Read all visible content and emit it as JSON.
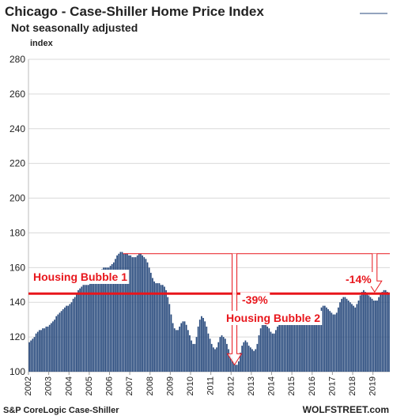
{
  "chart_data": {
    "type": "bar",
    "title": "Chicago - Case-Shiller Home Price Index",
    "subtitle": "Not seasonally adjusted",
    "y_label": "index",
    "source": "S&P CoreLogic Case-Shiller",
    "credit": "WOLFSTREET.com",
    "color": "#27497c",
    "grid": true,
    "ylim": [
      100,
      280
    ],
    "yticks": [
      100,
      120,
      140,
      160,
      180,
      200,
      220,
      240,
      260,
      280
    ],
    "reference_line": 145,
    "peak_line": 168,
    "annotations": [
      "Housing Bubble 1",
      "Housing Bubble 2",
      "-39%",
      "-14%"
    ],
    "categories": [
      "2002",
      null,
      null,
      null,
      null,
      null,
      null,
      null,
      null,
      null,
      null,
      null,
      "2003",
      null,
      null,
      null,
      null,
      null,
      null,
      null,
      null,
      null,
      null,
      null,
      "2004",
      null,
      null,
      null,
      null,
      null,
      null,
      null,
      null,
      null,
      null,
      null,
      "2005",
      null,
      null,
      null,
      null,
      null,
      null,
      null,
      null,
      null,
      null,
      null,
      "2006",
      null,
      null,
      null,
      null,
      null,
      null,
      null,
      null,
      null,
      null,
      null,
      "2007",
      null,
      null,
      null,
      null,
      null,
      null,
      null,
      null,
      null,
      null,
      null,
      "2008",
      null,
      null,
      null,
      null,
      null,
      null,
      null,
      null,
      null,
      null,
      null,
      "2009",
      null,
      null,
      null,
      null,
      null,
      null,
      null,
      null,
      null,
      null,
      null,
      "2010",
      null,
      null,
      null,
      null,
      null,
      null,
      null,
      null,
      null,
      null,
      null,
      "2011",
      null,
      null,
      null,
      null,
      null,
      null,
      null,
      null,
      null,
      null,
      null,
      "2012",
      null,
      null,
      null,
      null,
      null,
      null,
      null,
      null,
      null,
      null,
      null,
      "2013",
      null,
      null,
      null,
      null,
      null,
      null,
      null,
      null,
      null,
      null,
      null,
      "2014",
      null,
      null,
      null,
      null,
      null,
      null,
      null,
      null,
      null,
      null,
      null,
      "2015",
      null,
      null,
      null,
      null,
      null,
      null,
      null,
      null,
      null,
      null,
      null,
      "2016",
      null,
      null,
      null,
      null,
      null,
      null,
      null,
      null,
      null,
      null,
      null,
      "2017",
      null,
      null,
      null,
      null,
      null,
      null,
      null,
      null,
      null,
      null,
      null,
      "2018",
      null,
      null,
      null,
      null,
      null,
      null,
      null,
      null,
      null,
      null,
      null,
      "2019",
      null,
      null,
      null,
      null,
      null,
      null,
      null,
      null,
      null
    ],
    "values": [
      117,
      118,
      119,
      120,
      122,
      123,
      124,
      124,
      125,
      125,
      126,
      126,
      127,
      128,
      129,
      130,
      132,
      133,
      134,
      135,
      136,
      137,
      138,
      138,
      139,
      140,
      142,
      143,
      145,
      147,
      148,
      149,
      150,
      150,
      150,
      150,
      151,
      151,
      152,
      154,
      156,
      157,
      158,
      159,
      160,
      160,
      160,
      160,
      161,
      162,
      163,
      165,
      167,
      168,
      169,
      169,
      168,
      168,
      168,
      167,
      167,
      166,
      166,
      166,
      167,
      168,
      168,
      167,
      166,
      165,
      163,
      160,
      157,
      154,
      152,
      151,
      151,
      151,
      150,
      150,
      149,
      147,
      143,
      139,
      133,
      128,
      125,
      124,
      124,
      126,
      128,
      129,
      129,
      127,
      124,
      121,
      118,
      116,
      116,
      120,
      126,
      130,
      132,
      131,
      129,
      126,
      122,
      119,
      116,
      114,
      113,
      114,
      117,
      120,
      121,
      120,
      119,
      116,
      113,
      110,
      108,
      106,
      104,
      104,
      106,
      111,
      115,
      117,
      118,
      117,
      115,
      114,
      113,
      112,
      113,
      116,
      121,
      125,
      128,
      128,
      127,
      126,
      125,
      123,
      122,
      122,
      124,
      126,
      129,
      131,
      132,
      132,
      131,
      130,
      129,
      128,
      127,
      127,
      128,
      130,
      132,
      134,
      135,
      135,
      134,
      133,
      132,
      131,
      130,
      130,
      131,
      133,
      135,
      137,
      138,
      138,
      137,
      136,
      135,
      134,
      133,
      133,
      134,
      137,
      140,
      142,
      143,
      143,
      142,
      141,
      140,
      139,
      138,
      137,
      139,
      141,
      144,
      146,
      147,
      146,
      145,
      144,
      143,
      142,
      141,
      141,
      141,
      143,
      145,
      146,
      147,
      147,
      146,
      145
    ]
  }
}
